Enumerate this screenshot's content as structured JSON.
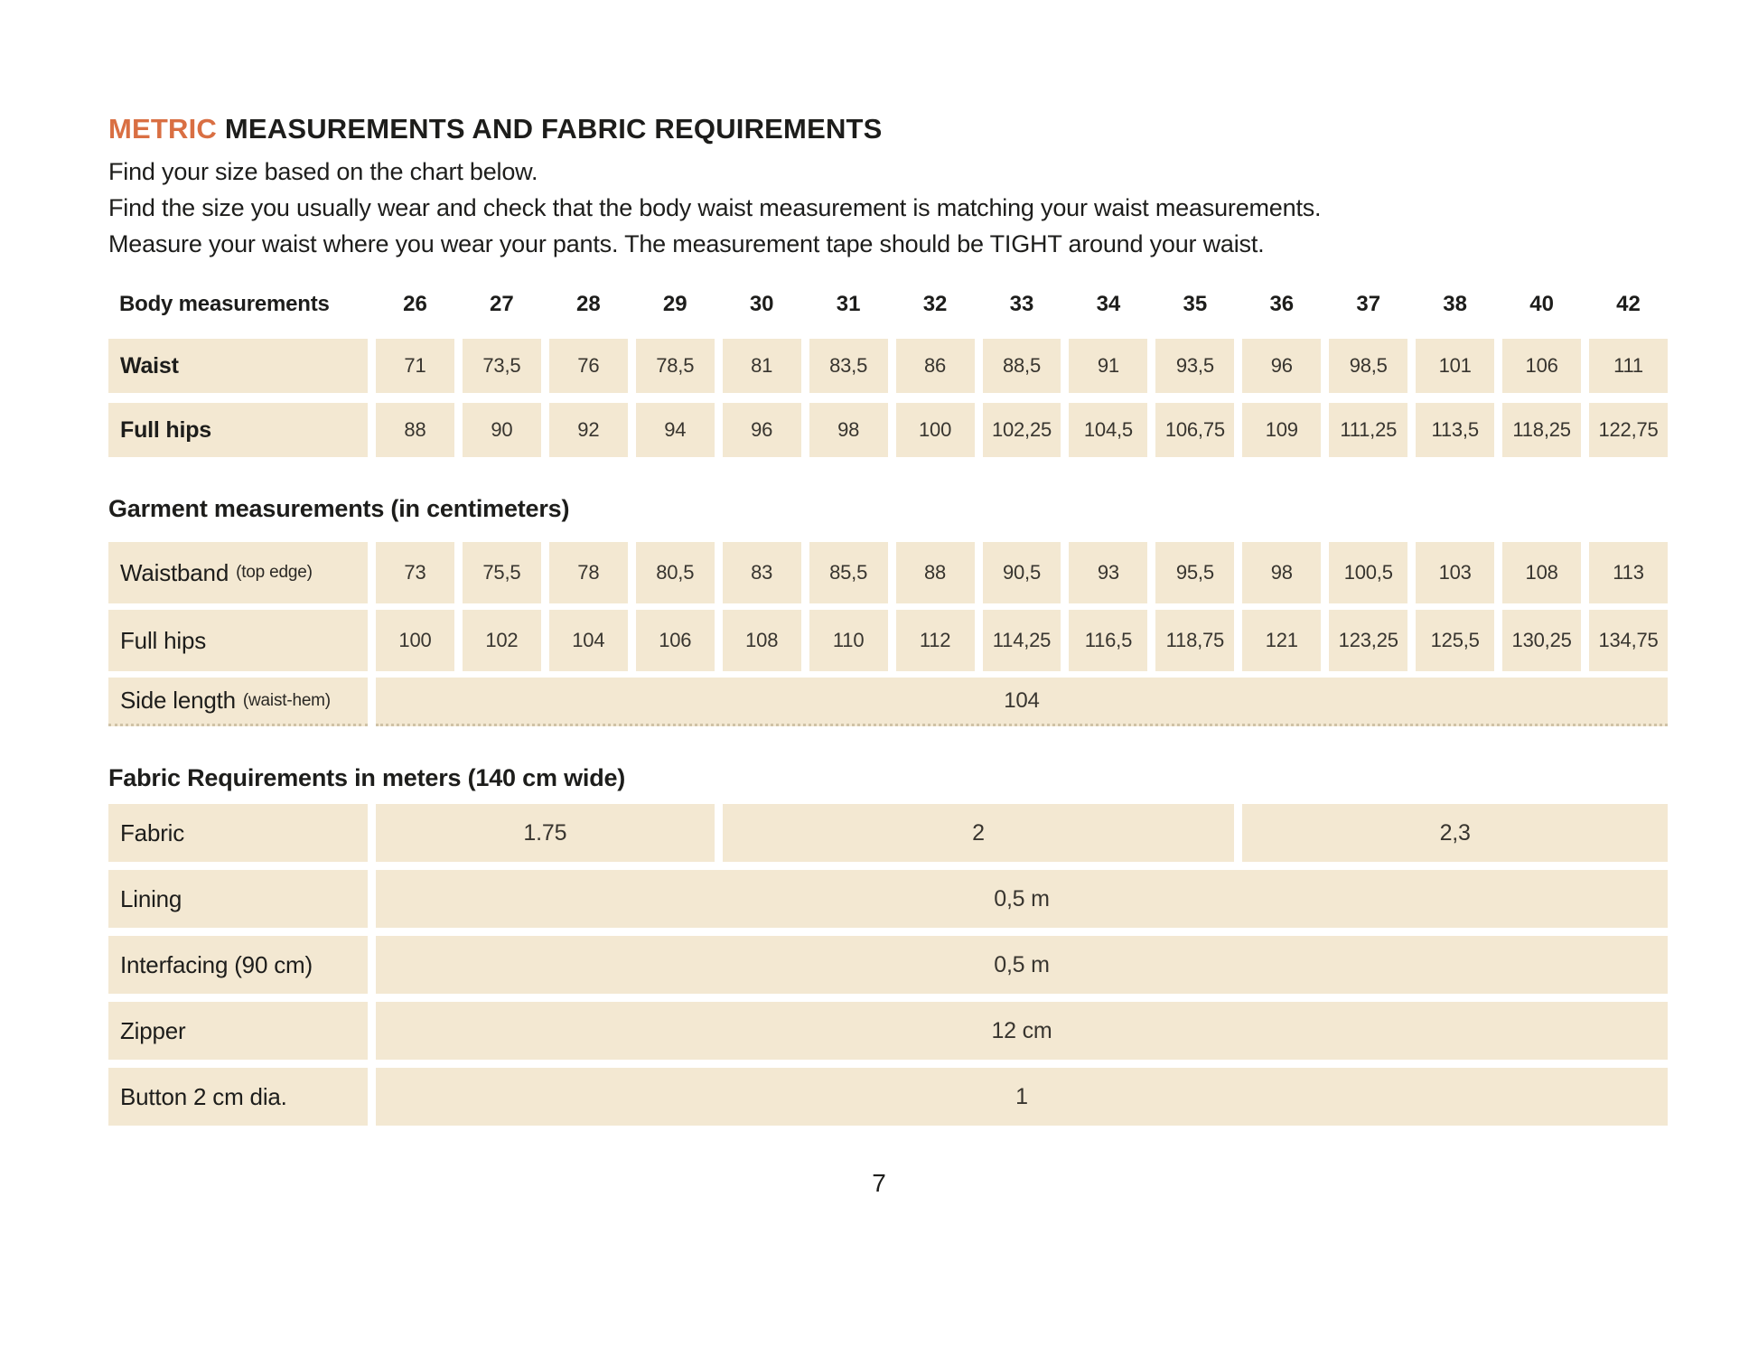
{
  "colors": {
    "accent_orange": "#d96f43",
    "cell_beige": "#f3e8d2",
    "text_dark": "#1d1d1b"
  },
  "header": {
    "title_accent": "METRIC",
    "title_rest": "MEASUREMENTS AND FABRIC REQUIREMENTS",
    "intro_lines": [
      "Find your size based on the chart below.",
      "Find the size you usually wear and check that the body waist measurement is matching your waist measurements.",
      "Measure your waist where you wear your pants. The measurement tape should be TIGHT around your waist."
    ]
  },
  "size_header": {
    "label": "Body measurements",
    "sizes": [
      "26",
      "27",
      "28",
      "29",
      "30",
      "31",
      "32",
      "33",
      "34",
      "35",
      "36",
      "37",
      "38",
      "40",
      "42"
    ]
  },
  "body_table": {
    "rows": [
      {
        "label": "Waist",
        "values": [
          "71",
          "73,5",
          "76",
          "78,5",
          "81",
          "83,5",
          "86",
          "88,5",
          "91",
          "93,5",
          "96",
          "98,5",
          "101",
          "106",
          "111"
        ]
      },
      {
        "label": "Full hips",
        "values": [
          "88",
          "90",
          "92",
          "94",
          "96",
          "98",
          "100",
          "102,25",
          "104,5",
          "106,75",
          "109",
          "111,25",
          "113,5",
          "118,25",
          "122,75"
        ]
      }
    ]
  },
  "garment": {
    "heading": "Garment measurements (in centimeters)",
    "rows": [
      {
        "label": "Waistband",
        "note": "(top edge)",
        "values": [
          "73",
          "75,5",
          "78",
          "80,5",
          "83",
          "85,5",
          "88",
          "90,5",
          "93",
          "95,5",
          "98",
          "100,5",
          "103",
          "108",
          "113"
        ]
      },
      {
        "label": "Full hips",
        "note": "",
        "values": [
          "100",
          "102",
          "104",
          "106",
          "108",
          "110",
          "112",
          "114,25",
          "116,5",
          "118,75",
          "121",
          "123,25",
          "125,5",
          "130,25",
          "134,75"
        ]
      }
    ],
    "side_row": {
      "label": "Side length",
      "note": "(waist-hem)",
      "value": "104"
    }
  },
  "fabric": {
    "heading": "Fabric Requirements in meters (140 cm wide)",
    "fabric_row": {
      "label": "Fabric",
      "values": [
        "1.75",
        "2",
        "2,3"
      ]
    },
    "rows": [
      {
        "label": "Lining",
        "value": "0,5 m"
      },
      {
        "label": "Interfacing (90 cm)",
        "value": "0,5 m"
      },
      {
        "label": "Zipper",
        "value": "12 cm"
      },
      {
        "label": "Button 2 cm dia.",
        "value": "1"
      }
    ]
  },
  "footer": {
    "page_number": "7"
  }
}
